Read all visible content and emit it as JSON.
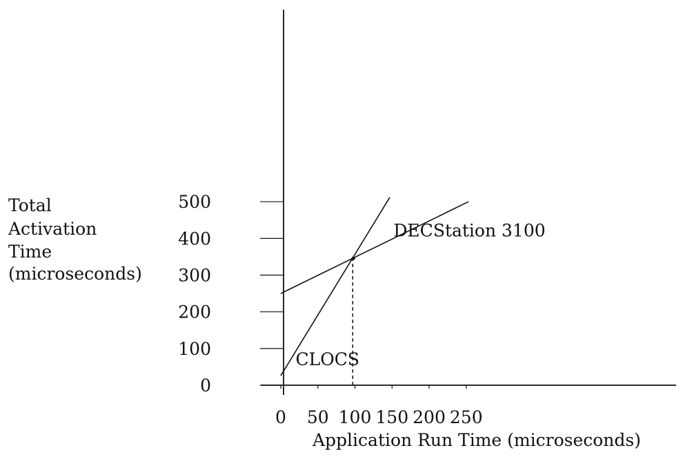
{
  "chart_data": {
    "type": "line",
    "title": "",
    "xlabel": "Application Run Time (microseconds)",
    "ylabel_lines": [
      "Total",
      "Activation",
      "Time",
      "(microseconds)"
    ],
    "xlim": [
      0,
      270
    ],
    "ylim": [
      0,
      500
    ],
    "xticks": [
      0,
      50,
      100,
      150,
      200,
      250
    ],
    "yticks": [
      0,
      100,
      200,
      300,
      400,
      500
    ],
    "grid": false,
    "legend": "none",
    "series": [
      {
        "name": "DECStation 3100",
        "x": [
          0,
          253
        ],
        "y": [
          250,
          500
        ],
        "label_at": [
          152,
          405
        ]
      },
      {
        "name": "CLOCS",
        "x": [
          0,
          147
        ],
        "y": [
          26,
          512
        ],
        "label_at": [
          20,
          55
        ]
      }
    ],
    "annotations": [
      {
        "type": "dashed-vertical",
        "x": 97,
        "y_from": 0,
        "y_to": 346
      }
    ]
  }
}
